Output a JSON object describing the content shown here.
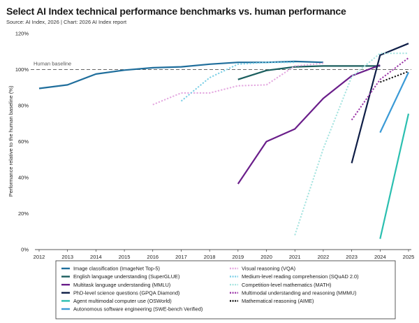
{
  "header": {
    "title": "Select AI Index technical performance benchmarks vs. human performance",
    "subtitle": "Source: AI Index, 2026 | Chart: 2026 AI Index report"
  },
  "chart_data": {
    "type": "line",
    "ylabel": "Performance relative to the human baseline (%)",
    "xlabel": "",
    "ylim": [
      0,
      120
    ],
    "xlim": [
      2012,
      2025
    ],
    "yticks": [
      "0%",
      "20%",
      "40%",
      "60%",
      "80%",
      "100%",
      "120%"
    ],
    "yticks_values": [
      0,
      20,
      40,
      60,
      80,
      100,
      120
    ],
    "xticks": [
      "2012",
      "2013",
      "2014",
      "2015",
      "2016",
      "2017",
      "2018",
      "2019",
      "2020",
      "2021",
      "2022",
      "2023",
      "2024",
      "2025"
    ],
    "baseline": {
      "label": "Human baseline",
      "value": 100
    },
    "grid": "none",
    "legend_placement": "bottom",
    "series": [
      {
        "name": "Image classification (ImageNet Top-5)",
        "color": "#1f6e9c",
        "dash": "solid",
        "x": [
          2012,
          2013,
          2014,
          2015,
          2016,
          2017,
          2018,
          2019,
          2020,
          2021,
          2022
        ],
        "y": [
          89.5,
          91.5,
          97.5,
          99.7,
          101,
          101.5,
          103,
          104,
          104,
          104.5,
          104
        ]
      },
      {
        "name": "English language understanding (SuperGLUE)",
        "color": "#1b5e5e",
        "dash": "solid",
        "x": [
          2019,
          2020,
          2021,
          2022,
          2023,
          2024
        ],
        "y": [
          94.5,
          99.5,
          101.5,
          102,
          102,
          102
        ]
      },
      {
        "name": "Multitask language understanding (MMLU)",
        "color": "#6a1e8a",
        "dash": "solid",
        "x": [
          2019,
          2020,
          2021,
          2022,
          2023,
          2024
        ],
        "y": [
          36.5,
          60,
          67,
          84,
          96.5,
          102.5
        ]
      },
      {
        "name": "PhD-level science questions (GPQA Diamond)",
        "color": "#0f1e47",
        "dash": "solid",
        "x": [
          2023,
          2024,
          2025
        ],
        "y": [
          48,
          108,
          114.5
        ]
      },
      {
        "name": "Agent multimodal computer use (OSWorld)",
        "color": "#2bbfb0",
        "dash": "solid",
        "x": [
          2024,
          2025
        ],
        "y": [
          6,
          75.5
        ]
      },
      {
        "name": "Autonomous software engineering (SWE-bench Verified)",
        "color": "#3a9ad6",
        "dash": "solid",
        "x": [
          2024,
          2025
        ],
        "y": [
          65,
          98.5
        ]
      },
      {
        "name": "Visual reasoning (VQA)",
        "color": "#e4a8e0",
        "dash": "dotted",
        "x": [
          2016,
          2017,
          2018,
          2019,
          2020,
          2021,
          2022
        ],
        "y": [
          80.5,
          87,
          87,
          91,
          91.5,
          102,
          103.5
        ]
      },
      {
        "name": "Medium-level reading comprehension (SQuAD 2.0)",
        "color": "#7ccfe6",
        "dash": "dotted",
        "x": [
          2017,
          2018,
          2019,
          2020,
          2021
        ],
        "y": [
          82.5,
          95.5,
          103,
          104,
          104
        ]
      },
      {
        "name": "Competition-level mathematics (MATH)",
        "color": "#a6e4e0",
        "dash": "dotted",
        "x": [
          2021,
          2022,
          2023,
          2024,
          2025
        ],
        "y": [
          8,
          56,
          96,
          109,
          109
        ]
      },
      {
        "name": "Multimodal understanding and reasoning (MMMU)",
        "color": "#9b35a8",
        "dash": "dotted",
        "x": [
          2023,
          2024,
          2025
        ],
        "y": [
          72,
          94.5,
          106.5
        ]
      },
      {
        "name": "Mathematical reasoning (AIME)",
        "color": "#111111",
        "dash": "dotted",
        "x": [
          2024,
          2025
        ],
        "y": [
          93,
          99
        ]
      }
    ]
  }
}
